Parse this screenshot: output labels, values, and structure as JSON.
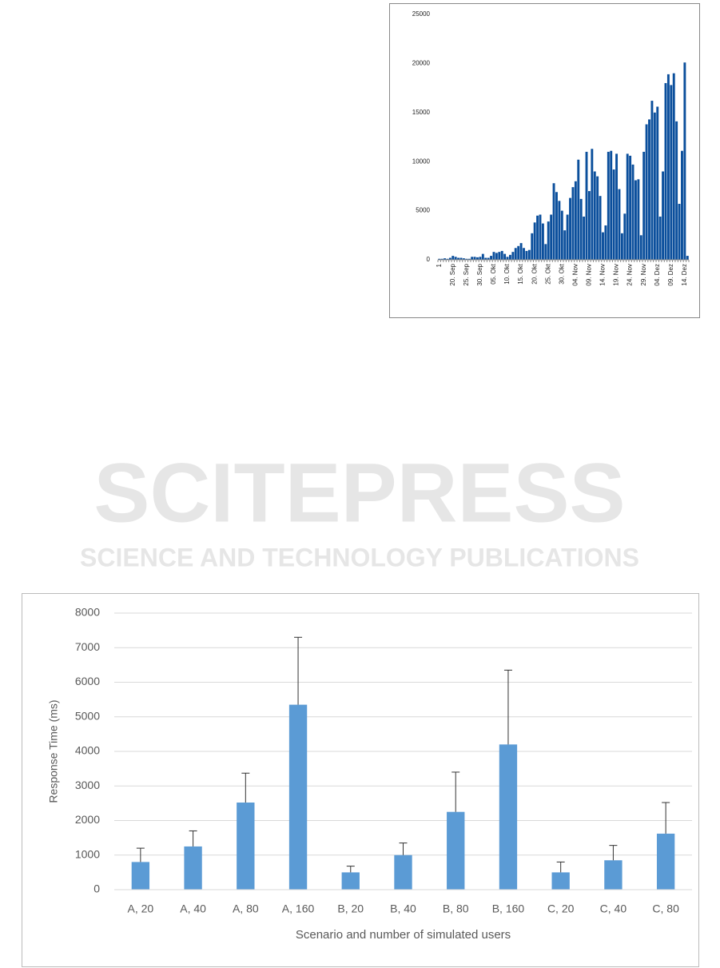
{
  "watermark": {
    "title": "SCITEPRESS",
    "subtitle": "SCIENCE AND TECHNOLOGY PUBLICATIONS"
  },
  "chart_data": [
    {
      "type": "bar",
      "color": "#0b4f9c",
      "grid": false,
      "categories": [
        "1",
        null,
        null,
        null,
        null,
        "20. Sep",
        null,
        null,
        null,
        null,
        "25. Sep",
        null,
        null,
        null,
        null,
        "30. Sep",
        null,
        null,
        null,
        null,
        "05. Okt",
        null,
        null,
        null,
        null,
        "10. Okt",
        null,
        null,
        null,
        null,
        "15. Okt",
        null,
        null,
        null,
        null,
        "20. Okt",
        null,
        null,
        null,
        null,
        "25. Okt",
        null,
        null,
        null,
        null,
        "30. Okt",
        null,
        null,
        null,
        null,
        "04. Nov",
        null,
        null,
        null,
        null,
        "09. Nov",
        null,
        null,
        null,
        null,
        "14. Nov",
        null,
        null,
        null,
        null,
        "19. Nov",
        null,
        null,
        null,
        null,
        "24. Nov",
        null,
        null,
        null,
        null,
        "29. Nov",
        null,
        null,
        null,
        null,
        "04. Dez",
        null,
        null,
        null,
        null,
        "09. Dez",
        null,
        null,
        null,
        null,
        "14. Dez",
        null
      ],
      "values": [
        100,
        100,
        150,
        100,
        200,
        400,
        300,
        200,
        200,
        150,
        100,
        100,
        300,
        300,
        250,
        300,
        600,
        200,
        200,
        400,
        800,
        700,
        800,
        900,
        600,
        300,
        500,
        800,
        1200,
        1400,
        1700,
        1200,
        900,
        1000,
        2700,
        3800,
        4500,
        4600,
        3700,
        1600,
        3900,
        4600,
        7800,
        6900,
        6000,
        5000,
        3000,
        4600,
        6300,
        7400,
        8000,
        10200,
        6200,
        4400,
        11000,
        7000,
        11300,
        9000,
        8500,
        6500,
        2800,
        3500,
        11000,
        11100,
        9200,
        10800,
        7200,
        2700,
        4700,
        10800,
        10600,
        9700,
        8100,
        8200,
        2500,
        11000,
        13800,
        14300,
        16200,
        15000,
        15600,
        4400,
        9000,
        18000,
        18900,
        17800,
        19000,
        14100,
        5700,
        11100,
        20100,
        400
      ],
      "ylim": [
        0,
        25000
      ],
      "yticks": [
        0,
        5000,
        10000,
        15000,
        20000,
        25000
      ]
    },
    {
      "type": "bar",
      "color": "#5b9bd5",
      "grid": true,
      "categories": [
        "A, 20",
        "A, 40",
        "A, 80",
        "A, 160",
        "B, 20",
        "B, 40",
        "B, 80",
        "B, 160",
        "C, 20",
        "C, 40",
        "C, 80"
      ],
      "values": [
        800,
        1250,
        2520,
        5350,
        500,
        1000,
        2250,
        4200,
        500,
        850,
        1620
      ],
      "errors": [
        400,
        450,
        850,
        1950,
        180,
        350,
        1150,
        2150,
        300,
        430,
        900
      ],
      "ylim": [
        0,
        8000
      ],
      "yticks": [
        0,
        1000,
        2000,
        3000,
        4000,
        5000,
        6000,
        7000,
        8000
      ],
      "ylabel": "Response Time (ms)",
      "xlabel": "Scenario and number of simulated users"
    }
  ]
}
